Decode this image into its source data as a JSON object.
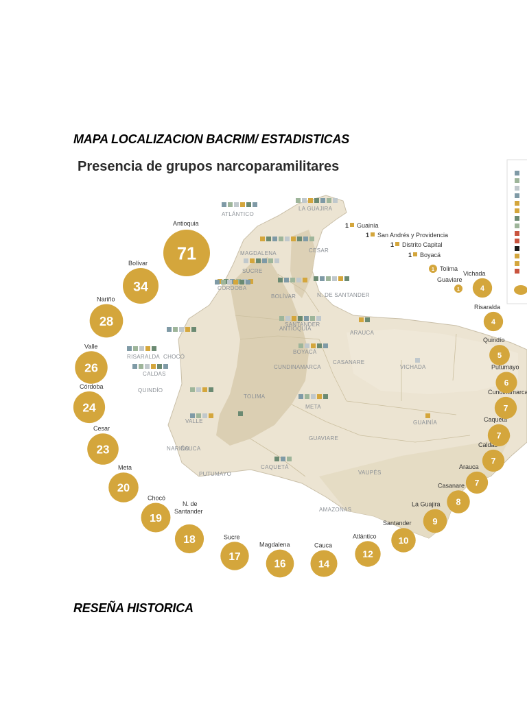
{
  "document": {
    "heading_map": "MAPA LOCALIZACION  BACRIM/ ESTADISTICAS",
    "heading_history": "RESEÑA HISTORICA"
  },
  "figure": {
    "title": "Presencia de grupos narcoparamilitares",
    "bubble_color": "#d4a63c",
    "land_color": "#ece4d2",
    "relief_color": "#d9ccaf",
    "label_color": "#8a8f95",
    "square_colors": [
      "#7f9aa6",
      "#9eb59a",
      "#c0c8cc",
      "#d4a63c",
      "#6b8a72",
      "#1a1a1a",
      "#c9543f"
    ]
  },
  "chart_data": {
    "type": "bubble-map",
    "title": "Presencia de grupos narcoparamilitares",
    "series": [
      {
        "name": "Antioquia",
        "value": 71
      },
      {
        "name": "Bolívar",
        "value": 34
      },
      {
        "name": "Nariño",
        "value": 28
      },
      {
        "name": "Valle",
        "value": 26
      },
      {
        "name": "Córdoba",
        "value": 24
      },
      {
        "name": "Cesar",
        "value": 23
      },
      {
        "name": "Meta",
        "value": 20
      },
      {
        "name": "Chocó",
        "value": 19
      },
      {
        "name": "N. de Santander",
        "value": 18
      },
      {
        "name": "Sucre",
        "value": 17
      },
      {
        "name": "Magdalena",
        "value": 16
      },
      {
        "name": "Cauca",
        "value": 14
      },
      {
        "name": "Atlántico",
        "value": 12
      },
      {
        "name": "Santander",
        "value": 10
      },
      {
        "name": "La Guajira",
        "value": 9
      },
      {
        "name": "Casanare",
        "value": 8
      },
      {
        "name": "Arauca",
        "value": 7
      },
      {
        "name": "Caldas",
        "value": 7
      },
      {
        "name": "Caquetá",
        "value": 7
      },
      {
        "name": "Cundinamarca",
        "value": 7
      },
      {
        "name": "Putumayo",
        "value": 6
      },
      {
        "name": "Quindío",
        "value": 5
      },
      {
        "name": "Risaralda",
        "value": 4
      },
      {
        "name": "Vichada",
        "value": 4
      },
      {
        "name": "Guaviare",
        "value": 1
      },
      {
        "name": "Tolima",
        "value": 1
      },
      {
        "name": "Guainía",
        "value": 1
      },
      {
        "name": "San Andrés y Providencia",
        "value": 1
      },
      {
        "name": "Distrito Capital",
        "value": 1
      },
      {
        "name": "Boyacá",
        "value": 1
      }
    ],
    "map_labels": [
      "LA GUAJIRA",
      "ATLÁNTICO",
      "MAGDALENA",
      "CESAR",
      "SUCRE",
      "CÓRDOBA",
      "BOLÍVAR",
      "N. DE SANTANDER",
      "CHOCÓ",
      "ANTIOQUIA",
      "SANTANDER",
      "ARAUCA",
      "BOYACÁ",
      "CASANARE",
      "VICHADA",
      "RISARALDA",
      "CALDAS",
      "QUINDÍO",
      "CUNDINAMARCA",
      "TOLIMA",
      "VALLE",
      "META",
      "CAUCA",
      "GUAINÍA",
      "GUAVIARE",
      "NARIÑO",
      "PUTUMAYO",
      "CAQUETÁ",
      "VAUPÉS",
      "AMAZONAS"
    ]
  }
}
